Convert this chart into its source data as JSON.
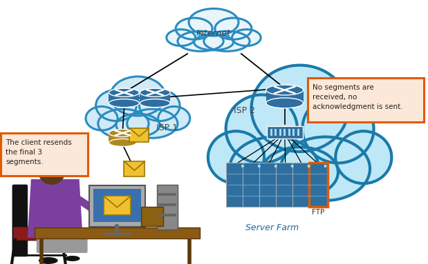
{
  "background_color": "#ffffff",
  "internet_label": "Internet",
  "isp1_label": "ISP 1",
  "isp2_label": "ISP 2",
  "server_farm_label": "Server Farm",
  "ftp_label": "FTP",
  "callout1": "The client resends\nthe final 3\nsegments.",
  "callout2": "No segments are\nreceived, no\nacknowledgment is sent.",
  "cloud_edge": "#2a8bbf",
  "cloud_fill_light": "#d0eaf7",
  "cloud_fill_internet": "#e8f5fb",
  "router_color": "#2e6fa0",
  "server_color": "#2e6fa0",
  "switch_color": "#2e6fa0",
  "callout_border": "#e05a00",
  "callout_fill": "#fce8d8",
  "line_color": "#111111",
  "isp2_cloud_edge": "#1a7aaa",
  "isp2_cloud_fill": "#bee8f7"
}
